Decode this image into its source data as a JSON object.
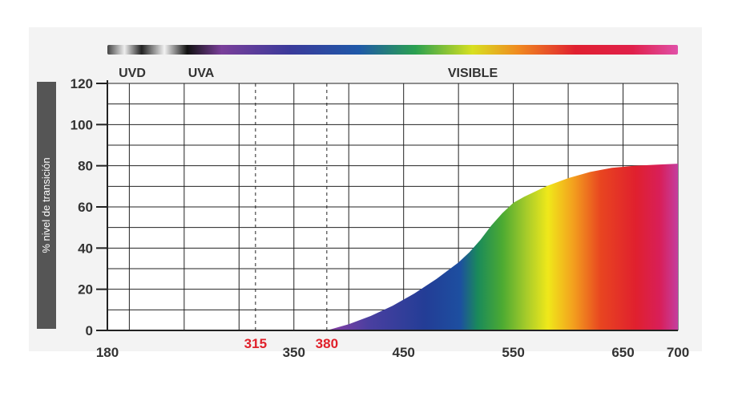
{
  "chart_data": {
    "type": "area",
    "title": "",
    "xlabel": "",
    "ylabel": "% nivel de transición",
    "xlim": [
      180,
      700
    ],
    "ylim": [
      0,
      120
    ],
    "x_ticks": [
      "180",
      "350",
      "450",
      "550",
      "650",
      "700"
    ],
    "x_ticks_highlight": [
      "315",
      "380"
    ],
    "y_ticks": [
      "120",
      "100",
      "80",
      "60",
      "40",
      "20",
      "0"
    ],
    "regions": [
      "UVD",
      "UVA",
      "VISIBLE"
    ],
    "dashed_markers": [
      315,
      380
    ],
    "series": [
      {
        "x": [
          380,
          400,
          420,
          440,
          460,
          480,
          500,
          510,
          520,
          530,
          540,
          550,
          560,
          580,
          600,
          620,
          640,
          660,
          680,
          700
        ],
        "values": [
          0,
          3,
          7,
          12,
          18,
          25,
          33,
          38,
          44,
          51,
          57,
          62,
          65,
          70,
          74,
          77,
          79,
          80,
          80.5,
          81
        ]
      }
    ],
    "grid": true,
    "legend": "none"
  },
  "colors": {
    "highlight_tick": "#e0202a",
    "axis": "#222222",
    "ylabel_bar": "#555555"
  }
}
